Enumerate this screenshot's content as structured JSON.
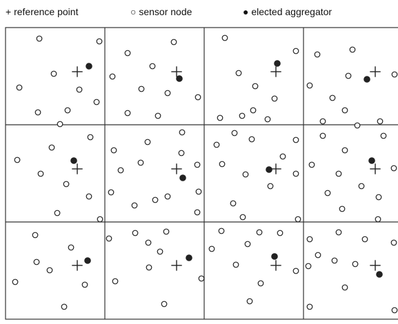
{
  "legend": {
    "reference_point_label": "+ reference point",
    "sensor_node_label": "○ sensor node",
    "elected_aggregator_label": "● elected aggregator",
    "reference_symbol": "+",
    "sensor_symbol": "open circle",
    "aggregator_symbol": "filled circle"
  },
  "grid": {
    "rows": 3,
    "cols": 4,
    "line_color": "#333333",
    "cells": [
      {
        "row": 0,
        "col": 0,
        "reference_point": [
          112,
          104
        ],
        "aggregator": [
          129,
          96
        ],
        "sensors": [
          [
            57,
            56
          ],
          [
            144,
            60
          ],
          [
            78,
            107
          ],
          [
            28,
            127
          ],
          [
            115,
            130
          ],
          [
            140,
            148
          ],
          [
            98,
            160
          ],
          [
            55,
            163
          ],
          [
            87,
            180
          ]
        ]
      },
      {
        "row": 0,
        "col": 1,
        "reference_point": [
          256,
          104
        ],
        "aggregator": [
          260,
          114
        ],
        "sensors": [
          [
            185,
            77
          ],
          [
            252,
            61
          ],
          [
            221,
            96
          ],
          [
            163,
            111
          ],
          [
            205,
            129
          ],
          [
            243,
            135
          ],
          [
            287,
            141
          ],
          [
            185,
            164
          ],
          [
            229,
            168
          ]
        ]
      },
      {
        "row": 0,
        "col": 2,
        "reference_point": [
          400,
          104
        ],
        "aggregator": [
          402,
          92
        ],
        "sensors": [
          [
            326,
            55
          ],
          [
            429,
            74
          ],
          [
            346,
            106
          ],
          [
            370,
            125
          ],
          [
            398,
            143
          ],
          [
            319,
            171
          ],
          [
            351,
            168
          ],
          [
            367,
            160
          ],
          [
            388,
            173
          ]
        ]
      },
      {
        "row": 0,
        "col": 3,
        "reference_point": [
          544,
          104
        ],
        "aggregator": [
          532,
          115
        ],
        "sensors": [
          [
            460,
            79
          ],
          [
            511,
            72
          ],
          [
            505,
            110
          ],
          [
            572,
            108
          ],
          [
            449,
            124
          ],
          [
            482,
            142
          ],
          [
            500,
            160
          ],
          [
            468,
            176
          ],
          [
            518,
            182
          ],
          [
            551,
            176
          ]
        ]
      },
      {
        "row": 1,
        "col": 0,
        "reference_point": [
          112,
          245
        ],
        "aggregator": [
          107,
          233
        ],
        "sensors": [
          [
            131,
            199
          ],
          [
            75,
            214
          ],
          [
            25,
            232
          ],
          [
            59,
            252
          ],
          [
            96,
            267
          ],
          [
            129,
            285
          ],
          [
            83,
            309
          ],
          [
            145,
            318
          ]
        ]
      },
      {
        "row": 1,
        "col": 1,
        "reference_point": [
          256,
          245
        ],
        "aggregator": [
          265,
          258
        ],
        "sensors": [
          [
            264,
            192
          ],
          [
            214,
            206
          ],
          [
            165,
            218
          ],
          [
            263,
            222
          ],
          [
            204,
            236
          ],
          [
            286,
            239
          ],
          [
            175,
            247
          ],
          [
            288,
            278
          ],
          [
            161,
            279
          ],
          [
            243,
            285
          ],
          [
            225,
            290
          ],
          [
            195,
            298
          ],
          [
            286,
            308
          ]
        ]
      },
      {
        "row": 1,
        "col": 2,
        "reference_point": [
          400,
          245
        ],
        "aggregator": [
          390,
          246
        ],
        "sensors": [
          [
            340,
            193
          ],
          [
            314,
            210
          ],
          [
            365,
            202
          ],
          [
            429,
            203
          ],
          [
            410,
            227
          ],
          [
            322,
            238
          ],
          [
            356,
            253
          ],
          [
            429,
            252
          ],
          [
            392,
            270
          ],
          [
            338,
            295
          ],
          [
            352,
            315
          ],
          [
            432,
            318
          ]
        ]
      },
      {
        "row": 1,
        "col": 3,
        "reference_point": [
          544,
          245
        ],
        "aggregator": [
          539,
          233
        ],
        "sensors": [
          [
            468,
            197
          ],
          [
            556,
            197
          ],
          [
            500,
            218
          ],
          [
            452,
            239
          ],
          [
            571,
            244
          ],
          [
            491,
            252
          ],
          [
            524,
            270
          ],
          [
            475,
            280
          ],
          [
            549,
            286
          ],
          [
            496,
            303
          ],
          [
            548,
            318
          ]
        ]
      },
      {
        "row": 2,
        "col": 0,
        "reference_point": [
          112,
          385
        ],
        "aggregator": [
          127,
          378
        ],
        "sensors": [
          [
            51,
            341
          ],
          [
            103,
            359
          ],
          [
            53,
            380
          ],
          [
            72,
            392
          ],
          [
            22,
            409
          ],
          [
            123,
            413
          ],
          [
            93,
            445
          ]
        ]
      },
      {
        "row": 2,
        "col": 1,
        "reference_point": [
          256,
          385
        ],
        "aggregator": [
          274,
          374
        ],
        "sensors": [
          [
            158,
            346
          ],
          [
            196,
            338
          ],
          [
            241,
            336
          ],
          [
            215,
            352
          ],
          [
            232,
            365
          ],
          [
            216,
            388
          ],
          [
            167,
            408
          ],
          [
            292,
            404
          ],
          [
            238,
            441
          ]
        ]
      },
      {
        "row": 2,
        "col": 2,
        "reference_point": [
          400,
          385
        ],
        "aggregator": [
          398,
          372
        ],
        "sensors": [
          [
            321,
            335
          ],
          [
            376,
            337
          ],
          [
            406,
            338
          ],
          [
            359,
            354
          ],
          [
            307,
            361
          ],
          [
            342,
            384
          ],
          [
            429,
            393
          ],
          [
            378,
            411
          ],
          [
            362,
            437
          ]
        ]
      },
      {
        "row": 2,
        "col": 3,
        "reference_point": [
          544,
          385
        ],
        "aggregator": [
          550,
          398
        ],
        "sensors": [
          [
            449,
            347
          ],
          [
            491,
            337
          ],
          [
            529,
            347
          ],
          [
            571,
            352
          ],
          [
            461,
            370
          ],
          [
            485,
            378
          ],
          [
            515,
            383
          ],
          [
            447,
            386
          ],
          [
            500,
            417
          ],
          [
            449,
            445
          ],
          [
            572,
            450
          ]
        ]
      }
    ]
  }
}
